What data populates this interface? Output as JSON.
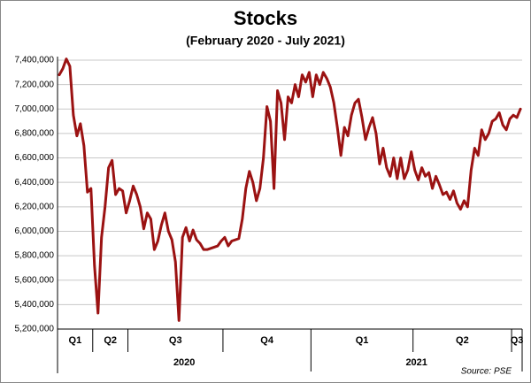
{
  "chart_data": {
    "type": "line",
    "title": "Stocks",
    "subtitle": "(February 2020 - July 2021)",
    "source": "Source: PSE",
    "color": "#9b1212",
    "grid": true,
    "ylim": [
      5200000,
      7400000
    ],
    "yticks": [
      {
        "value": 5200000,
        "label": "5,200,000"
      },
      {
        "value": 5400000,
        "label": "5,400,000"
      },
      {
        "value": 5600000,
        "label": "5,600,000"
      },
      {
        "value": 5800000,
        "label": "5,800,000"
      },
      {
        "value": 6000000,
        "label": "6,000,000"
      },
      {
        "value": 6200000,
        "label": "6,200,000"
      },
      {
        "value": 6400000,
        "label": "6,400,000"
      },
      {
        "value": 6600000,
        "label": "6,600,000"
      },
      {
        "value": 6800000,
        "label": "6,800,000"
      },
      {
        "value": 7000000,
        "label": "7,000,000"
      },
      {
        "value": 7200000,
        "label": "7,200,000"
      },
      {
        "value": 7400000,
        "label": "7,400,000"
      }
    ],
    "quarters": [
      {
        "label": "Q1",
        "points": 10
      },
      {
        "label": "Q2",
        "points": 10
      },
      {
        "label": "Q3",
        "points": 27
      },
      {
        "label": "Q4",
        "points": 25
      },
      {
        "label": "Q1",
        "points": 29
      },
      {
        "label": "Q2",
        "points": 28
      },
      {
        "label": "Q3",
        "points": 3
      }
    ],
    "years": [
      {
        "label": "2020",
        "quarters": 4
      },
      {
        "label": "2021",
        "quarters": 3
      }
    ],
    "values": [
      7280000,
      7330000,
      7410000,
      7350000,
      6950000,
      6780000,
      6880000,
      6700000,
      6320000,
      6350000,
      5720000,
      5330000,
      5950000,
      6200000,
      6520000,
      6580000,
      6300000,
      6350000,
      6330000,
      6150000,
      6250000,
      6370000,
      6300000,
      6200000,
      6020000,
      6150000,
      6100000,
      5850000,
      5920000,
      6050000,
      6150000,
      6000000,
      5930000,
      5750000,
      5270000,
      5950000,
      6030000,
      5920000,
      6010000,
      5930000,
      5900000,
      5850000,
      5850000,
      5860000,
      5870000,
      5880000,
      5920000,
      5950000,
      5880000,
      5920000,
      5930000,
      5940000,
      6100000,
      6350000,
      6490000,
      6400000,
      6250000,
      6350000,
      6600000,
      7020000,
      6900000,
      6350000,
      7150000,
      7050000,
      6750000,
      7100000,
      7050000,
      7200000,
      7100000,
      7280000,
      7220000,
      7300000,
      7100000,
      7280000,
      7200000,
      7300000,
      7250000,
      7180000,
      7050000,
      6850000,
      6620000,
      6850000,
      6780000,
      6950000,
      7050000,
      7080000,
      6930000,
      6750000,
      6850000,
      6930000,
      6800000,
      6550000,
      6680000,
      6520000,
      6450000,
      6600000,
      6430000,
      6600000,
      6430000,
      6500000,
      6650000,
      6500000,
      6420000,
      6520000,
      6450000,
      6480000,
      6350000,
      6450000,
      6380000,
      6300000,
      6320000,
      6260000,
      6330000,
      6230000,
      6180000,
      6250000,
      6200000,
      6500000,
      6680000,
      6620000,
      6830000,
      6750000,
      6800000,
      6900000,
      6920000,
      6970000,
      6870000,
      6830000,
      6920000,
      6950000,
      6930000,
      7000000
    ]
  }
}
